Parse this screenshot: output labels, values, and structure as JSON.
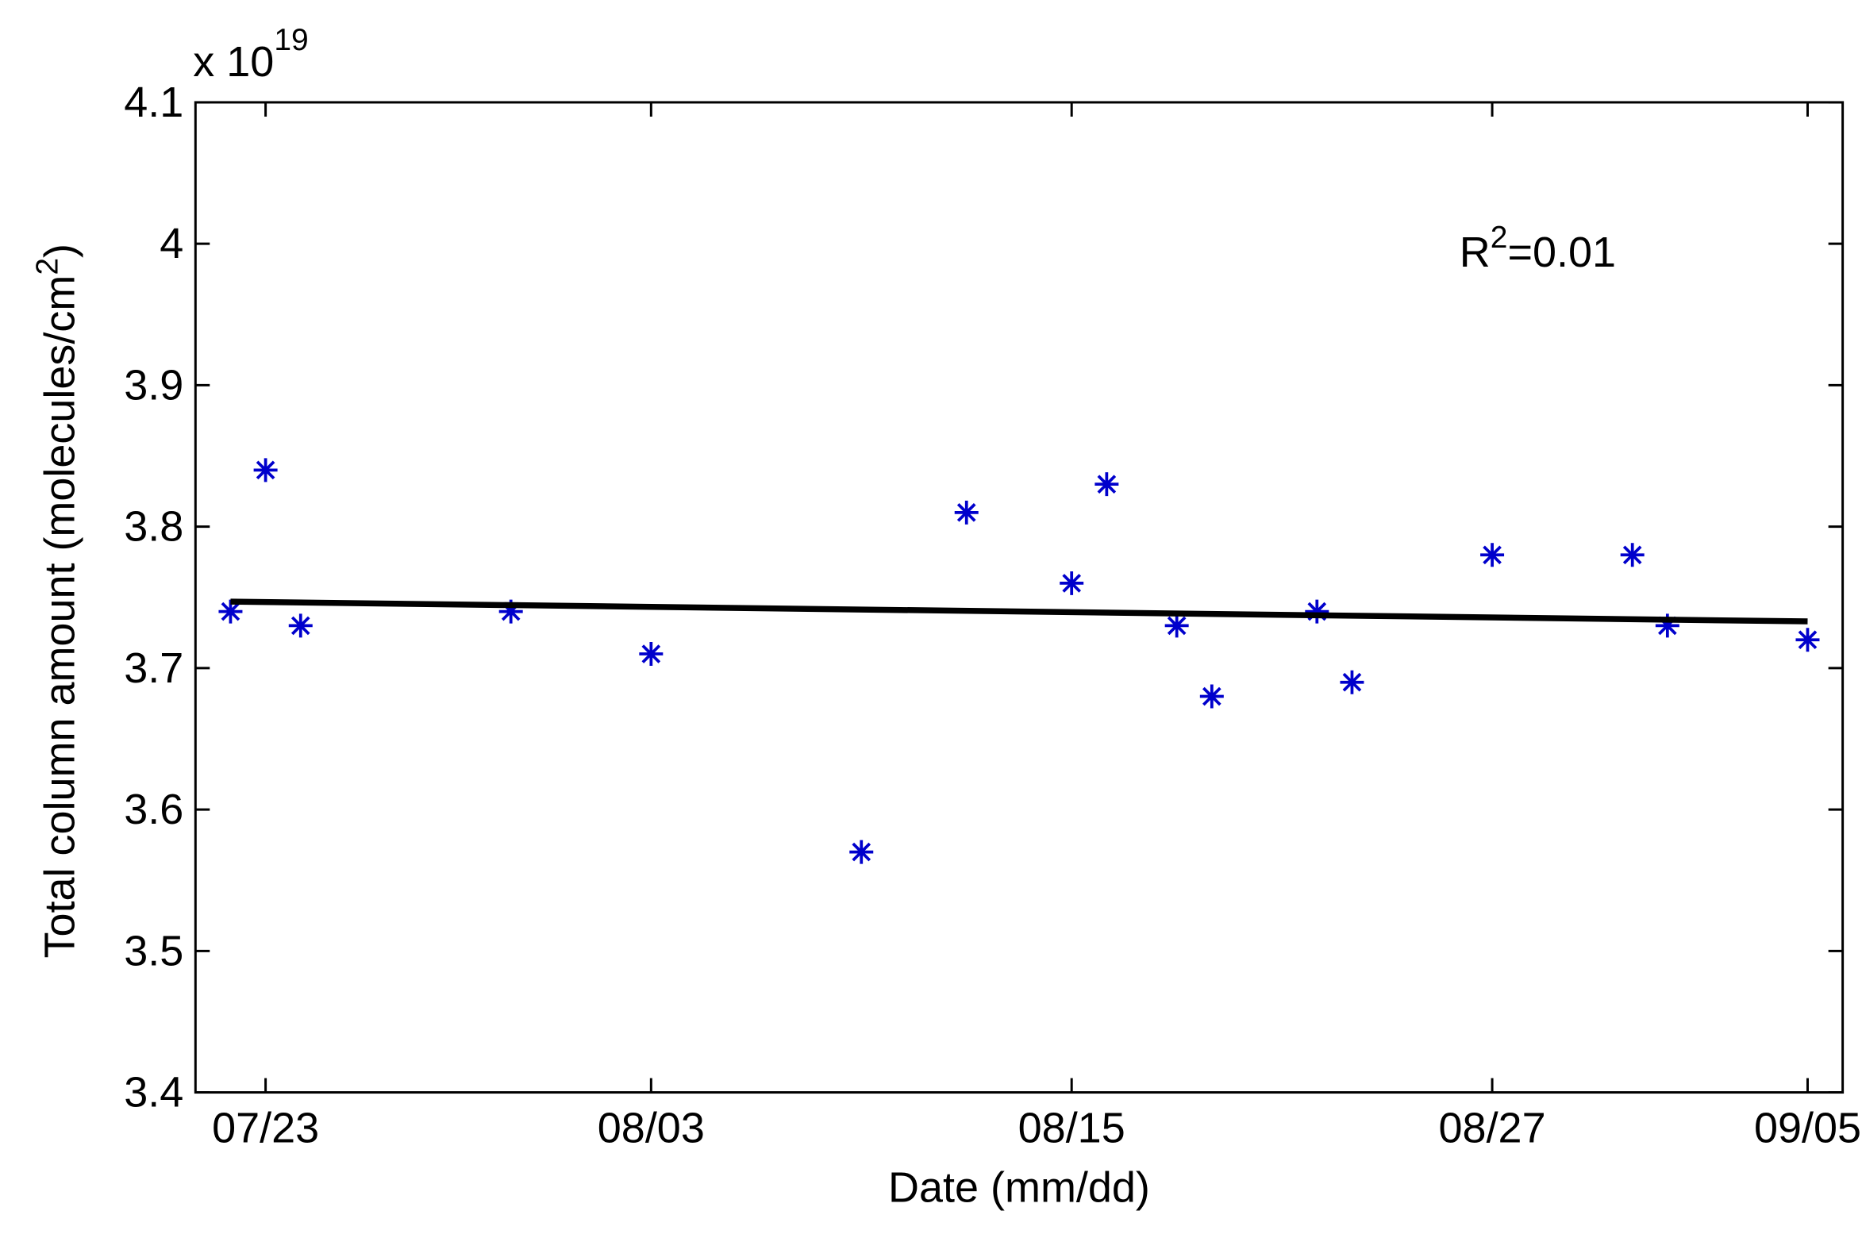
{
  "chart_data": {
    "type": "scatter",
    "x_label": "Date (mm/dd)",
    "y_label": "Total column amount (molecules/cm",
    "y_label_sup": "2",
    "y_label_end": ")",
    "y_exponent_base": "x 10",
    "y_exponent": "19",
    "annotation_base": "R",
    "annotation_sup": "2",
    "annotation_rest": "=0.01",
    "xlim": [
      "07/21",
      "09/06"
    ],
    "xticks": [
      "07/23",
      "08/03",
      "08/15",
      "08/27",
      "09/05"
    ],
    "ylim": [
      3.4,
      4.1
    ],
    "yticks": [
      3.4,
      3.5,
      3.6,
      3.7,
      3.8,
      3.9,
      4,
      4.1
    ],
    "marker": "*",
    "series": [
      {
        "color": "#0000cc",
        "x": [
          "07/22",
          "07/23",
          "07/24",
          "07/30",
          "08/03",
          "08/09",
          "08/12",
          "08/15",
          "08/16",
          "08/18",
          "08/19",
          "08/22",
          "08/23",
          "08/27",
          "08/31",
          "09/01",
          "09/05"
        ],
        "values": [
          3.74,
          3.84,
          3.73,
          3.74,
          3.71,
          3.57,
          3.81,
          3.76,
          3.83,
          3.73,
          3.68,
          3.74,
          3.69,
          3.78,
          3.78,
          3.73,
          3.72
        ]
      },
      {
        "color": "#000000",
        "line": true,
        "x": [
          "07/22",
          "09/05"
        ],
        "values": [
          3.747,
          3.733
        ]
      }
    ]
  }
}
